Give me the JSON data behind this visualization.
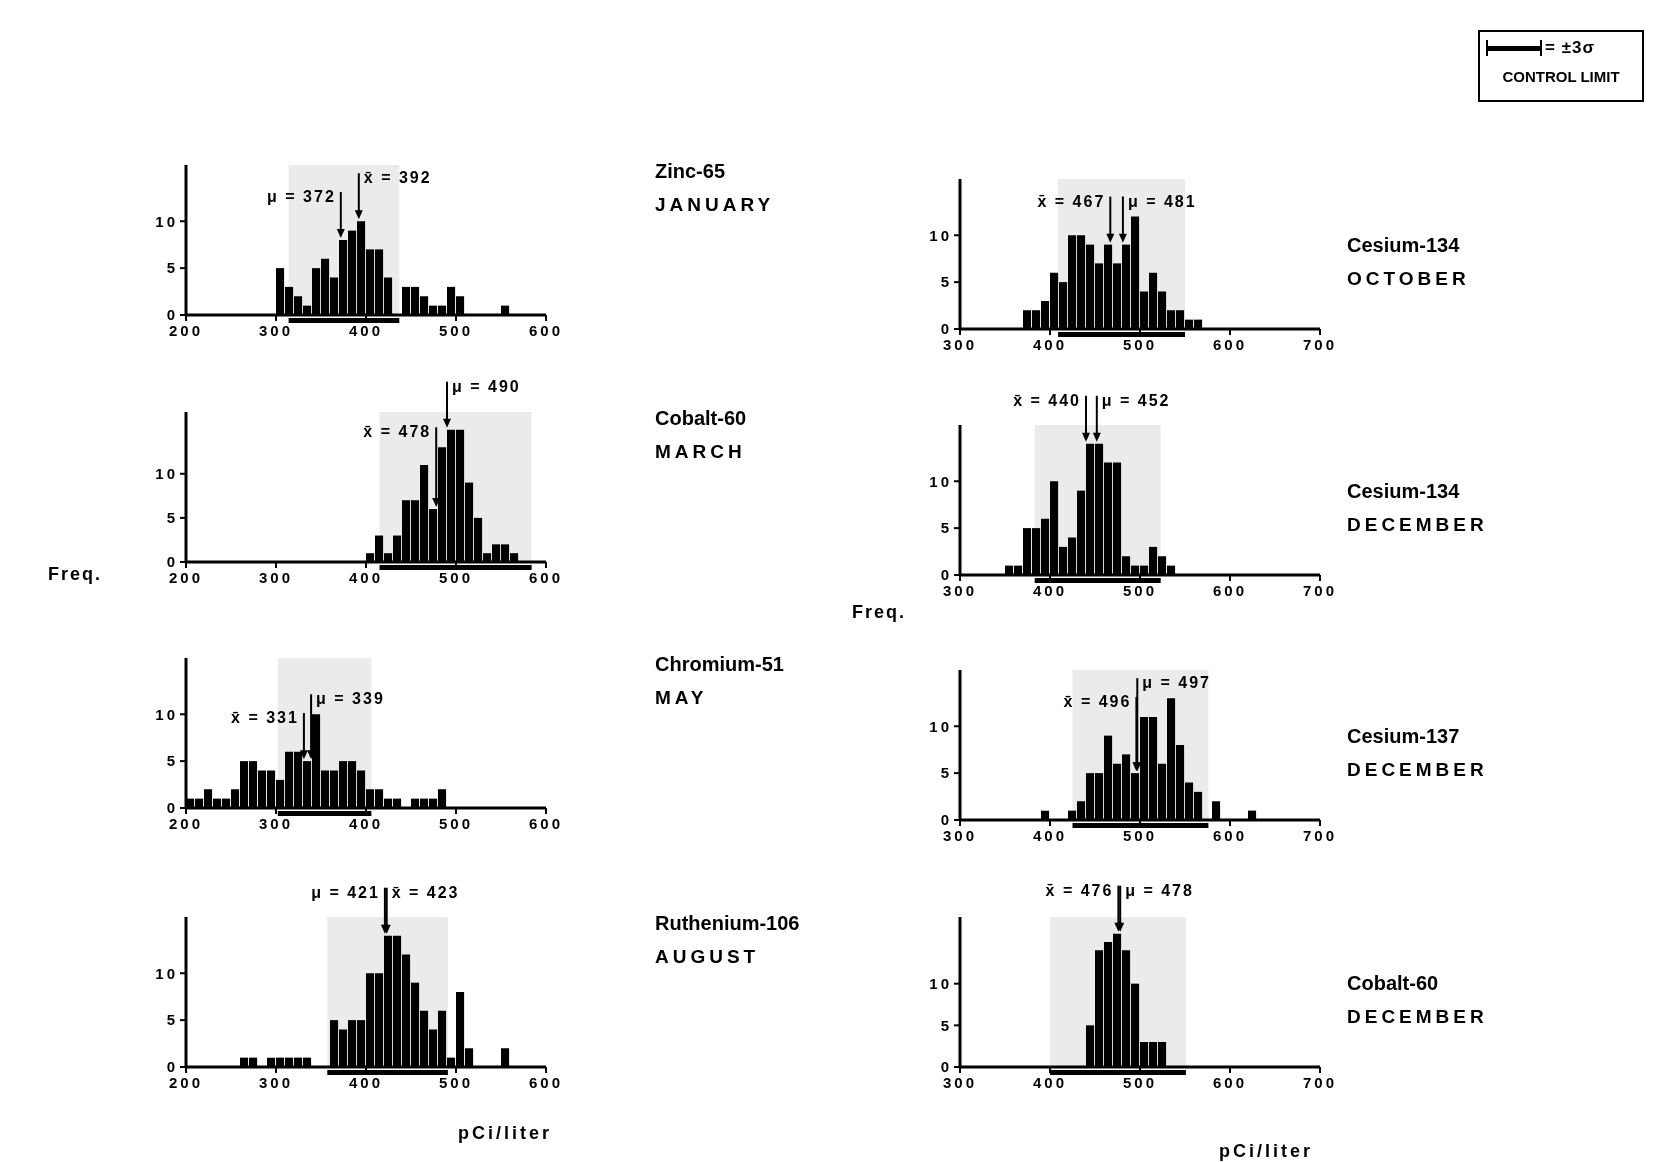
{
  "chart_data": [
    {
      "type": "histogram",
      "color": "#000000",
      "bins": [
        300,
        310,
        320,
        330,
        340,
        350,
        360,
        370,
        380,
        390,
        400,
        410,
        420,
        430,
        440,
        450,
        460,
        470,
        480,
        490,
        500,
        510,
        520,
        530,
        540,
        550,
        560
      ],
      "values": [
        5,
        3,
        2,
        1,
        5,
        6,
        4,
        8,
        9,
        10,
        7,
        7,
        4,
        0,
        3,
        3,
        2,
        1,
        1,
        3,
        2,
        0,
        0,
        0,
        0,
        1
      ],
      "xlim": [
        200,
        600
      ],
      "xticks": [
        200,
        300,
        400,
        500,
        600
      ],
      "ylim": [
        0,
        16
      ],
      "yticks": [
        0,
        5,
        10
      ],
      "annotations": [
        "Zinc-65",
        "JANUARY",
        {
          "text": "μ = 372",
          "x": 372,
          "y": 8
        },
        {
          "text": "x̄ = 392",
          "x": 392,
          "y": 10
        }
      ],
      "bands": [
        {
          "axis": "x",
          "from": 314,
          "to": 437
        }
      ]
    },
    {
      "type": "histogram",
      "ylabel": "Freq.",
      "color": "#000000",
      "bins": [
        400,
        410,
        420,
        430,
        440,
        450,
        460,
        470,
        480,
        490,
        500,
        510,
        520,
        530,
        540,
        550,
        560,
        570
      ],
      "values": [
        1,
        3,
        1,
        3,
        7,
        7,
        11,
        6,
        13,
        15,
        15,
        9,
        5,
        1,
        2,
        2,
        1
      ],
      "xlim": [
        200,
        600
      ],
      "xticks": [
        200,
        300,
        400,
        500,
        600
      ],
      "ylim": [
        0,
        17
      ],
      "yticks": [
        0,
        5,
        10
      ],
      "annotations": [
        "Cobalt-60",
        "MARCH",
        {
          "text": "x̄ = 478",
          "x": 478,
          "y": 6
        },
        {
          "text": "μ = 490",
          "x": 490,
          "y": 15
        }
      ],
      "bands": [
        {
          "axis": "x",
          "from": 415,
          "to": 584
        }
      ]
    },
    {
      "type": "histogram",
      "color": "#000000",
      "bins": [
        200,
        210,
        220,
        230,
        240,
        250,
        260,
        270,
        280,
        290,
        300,
        310,
        320,
        330,
        340,
        350,
        360,
        370,
        380,
        390,
        400,
        410,
        420,
        430,
        440,
        450,
        460,
        470,
        480,
        490
      ],
      "values": [
        1,
        1,
        2,
        1,
        1,
        2,
        5,
        5,
        4,
        4,
        3,
        6,
        6,
        5,
        10,
        4,
        4,
        5,
        5,
        4,
        2,
        2,
        1,
        1,
        0,
        1,
        1,
        1,
        2
      ],
      "xlim": [
        200,
        600
      ],
      "xticks": [
        200,
        300,
        400,
        500,
        600
      ],
      "ylim": [
        0,
        16
      ],
      "yticks": [
        0,
        5,
        10
      ],
      "annotations": [
        "Chromium-51",
        "MAY",
        {
          "text": "x̄ = 331",
          "x": 331,
          "y": 5
        },
        {
          "text": "μ = 339",
          "x": 339,
          "y": 5
        }
      ],
      "bands": [
        {
          "axis": "x",
          "from": 302,
          "to": 406
        }
      ]
    },
    {
      "type": "histogram",
      "xlabel": "pCi/liter",
      "color": "#000000",
      "bins": [
        260,
        270,
        280,
        290,
        300,
        310,
        320,
        330,
        340,
        350,
        360,
        370,
        380,
        390,
        400,
        410,
        420,
        430,
        440,
        450,
        460,
        470,
        480,
        490,
        500,
        510,
        520,
        530,
        540,
        550,
        560
      ],
      "values": [
        1,
        1,
        0,
        1,
        1,
        1,
        1,
        1,
        0,
        0,
        5,
        4,
        5,
        5,
        10,
        10,
        14,
        14,
        12,
        9,
        6,
        4,
        6,
        1,
        8,
        2,
        0,
        0,
        0,
        2
      ],
      "xlim": [
        200,
        600
      ],
      "xticks": [
        200,
        300,
        400,
        500,
        600
      ],
      "ylim": [
        0,
        16
      ],
      "yticks": [
        0,
        5,
        10
      ],
      "annotations": [
        "Ruthenium-106",
        "AUGUST",
        {
          "text": "μ = 421",
          "x": 421,
          "y": 14
        },
        {
          "text": "x̄ = 423",
          "x": 423,
          "y": 14
        }
      ],
      "bands": [
        {
          "axis": "x",
          "from": 357,
          "to": 491
        }
      ]
    },
    {
      "type": "histogram",
      "color": "#000000",
      "bins": [
        370,
        380,
        390,
        400,
        410,
        420,
        430,
        440,
        450,
        460,
        470,
        480,
        490,
        500,
        510,
        520,
        530,
        540,
        550,
        560,
        570
      ],
      "values": [
        2,
        2,
        3,
        6,
        5,
        10,
        10,
        9,
        7,
        9,
        7,
        9,
        12,
        4,
        6,
        4,
        2,
        2,
        1,
        1
      ],
      "xlim": [
        300,
        700
      ],
      "xticks": [
        300,
        400,
        500,
        600,
        700
      ],
      "ylim": [
        0,
        16
      ],
      "yticks": [
        0,
        5,
        10
      ],
      "annotations": [
        "Cesium-134",
        "OCTOBER",
        {
          "text": "x̄ = 467",
          "x": 467,
          "y": 9
        },
        {
          "text": "μ = 481",
          "x": 481,
          "y": 9
        }
      ],
      "bands": [
        {
          "axis": "x",
          "from": 409,
          "to": 550
        }
      ]
    },
    {
      "type": "histogram",
      "ylabel": "Freq.",
      "color": "#000000",
      "bins": [
        350,
        360,
        370,
        380,
        390,
        400,
        410,
        420,
        430,
        440,
        450,
        460,
        470,
        480,
        490,
        500,
        510,
        520,
        530,
        540
      ],
      "values": [
        1,
        1,
        5,
        5,
        6,
        10,
        3,
        4,
        9,
        14,
        14,
        12,
        12,
        2,
        1,
        1,
        3,
        2,
        1
      ],
      "xlim": [
        300,
        700
      ],
      "xticks": [
        300,
        400,
        500,
        600,
        700
      ],
      "ylim": [
        0,
        16
      ],
      "yticks": [
        0,
        5,
        10
      ],
      "annotations": [
        "Cesium-134",
        "DECEMBER",
        {
          "text": "x̄ = 440",
          "x": 440,
          "y": 14
        },
        {
          "text": "μ = 452",
          "x": 452,
          "y": 14
        }
      ],
      "bands": [
        {
          "axis": "x",
          "from": 383,
          "to": 523
        }
      ]
    },
    {
      "type": "histogram",
      "color": "#000000",
      "bins": [
        390,
        400,
        410,
        420,
        430,
        440,
        450,
        460,
        470,
        480,
        490,
        500,
        510,
        520,
        530,
        540,
        550,
        560,
        570,
        580,
        590,
        600,
        610,
        620,
        630
      ],
      "values": [
        1,
        0,
        0,
        1,
        2,
        5,
        5,
        9,
        6,
        7,
        5,
        11,
        11,
        6,
        13,
        8,
        4,
        3,
        0,
        2,
        0,
        0,
        0,
        1
      ],
      "xlim": [
        300,
        700
      ],
      "xticks": [
        300,
        400,
        500,
        600,
        700
      ],
      "ylim": [
        0,
        16
      ],
      "yticks": [
        0,
        5,
        10
      ],
      "annotations": [
        "Cesium-137",
        "DECEMBER",
        {
          "text": "x̄ = 496",
          "x": 496,
          "y": 5
        },
        {
          "text": "μ = 497",
          "x": 497,
          "y": 5
        }
      ],
      "bands": [
        {
          "axis": "x",
          "from": 425,
          "to": 576
        }
      ]
    },
    {
      "type": "histogram",
      "xlabel": "pCi/liter",
      "color": "#000000",
      "bins": [
        440,
        450,
        460,
        470,
        480,
        490,
        500,
        510,
        520,
        530
      ],
      "values": [
        5,
        14,
        15,
        16,
        14,
        10,
        3,
        3,
        3
      ],
      "xlim": [
        300,
        700
      ],
      "xticks": [
        300,
        400,
        500,
        600,
        700
      ],
      "ylim": [
        0,
        18
      ],
      "yticks": [
        0,
        5,
        10
      ],
      "annotations": [
        "Cobalt-60",
        "DECEMBER",
        {
          "text": "x̄ = 476",
          "x": 476,
          "y": 16
        },
        {
          "text": "μ = 478",
          "x": 478,
          "y": 16
        }
      ],
      "bands": [
        {
          "axis": "x",
          "from": 400,
          "to": 551
        }
      ]
    },
    {
      "type": "other",
      "annotations": [
        "= ±3σ",
        "CONTROL LIMIT"
      ]
    }
  ]
}
